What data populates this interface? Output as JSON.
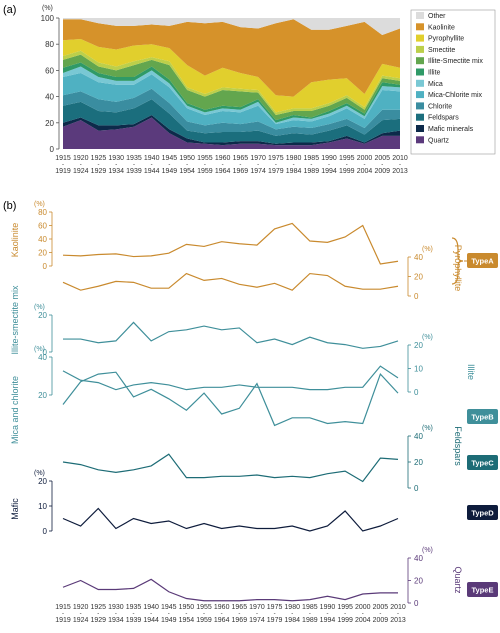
{
  "panel_labels": {
    "a": "(a)",
    "b": "(b)"
  },
  "colors": {
    "Other": "#dcdcdc",
    "Kaolinite": "#d6922a",
    "Pyrophyllite": "#e1cf2d",
    "Smectite": "#bccf4a",
    "Illite-Smectite mix": "#63a64e",
    "Illite": "#2f9a67",
    "Mica": "#79c8d4",
    "Mica-Chlorite mix": "#4fb1c2",
    "Chlorite": "#3a8da0",
    "Feldspars": "#1b6e7d",
    "Mafic minerals": "#0d2a4a",
    "Quartz": "#5b3a7c",
    "TypeA": "#c98a2e",
    "TypeB": "#3f8f9a",
    "TypeC": "#1d6c76",
    "TypeD": "#0e1c3c",
    "TypeE": "#5a3a78"
  },
  "x_ticks_top": [
    "1915",
    "1920",
    "1925",
    "1930",
    "1935",
    "1940",
    "1945",
    "1950",
    "1955",
    "1960",
    "1965",
    "1970",
    "1975",
    "1980",
    "1985",
    "1990",
    "1995",
    "2000",
    "2005",
    "2010"
  ],
  "x_ticks_bottom": [
    "1919",
    "1924",
    "1929",
    "1934",
    "1939",
    "1944",
    "1949",
    "1954",
    "1959",
    "1964",
    "1969",
    "1974",
    "1979",
    "1984",
    "1989",
    "1994",
    "1999",
    "2004",
    "2009",
    "2013"
  ],
  "chart_data": [
    {
      "type": "area",
      "stacked": true,
      "ylabel": "(%)",
      "ylim": [
        0,
        100
      ],
      "yticks": [
        0,
        20,
        40,
        60,
        80,
        100
      ],
      "legend_position": "right",
      "series": [
        {
          "name": "Quartz",
          "values": [
            17,
            22,
            14,
            15,
            17,
            24,
            12,
            5,
            4,
            3,
            4,
            4,
            3,
            3,
            3,
            5,
            8,
            4,
            10,
            10
          ]
        },
        {
          "name": "Mafic minerals",
          "values": [
            3,
            2,
            4,
            3,
            2,
            2,
            3,
            3,
            1,
            2,
            2,
            2,
            1,
            2,
            2,
            1,
            2,
            1,
            2,
            4
          ]
        },
        {
          "name": "Feldspars",
          "values": [
            13,
            12,
            11,
            10,
            12,
            12,
            12,
            6,
            7,
            8,
            7,
            8,
            6,
            7,
            6,
            8,
            8,
            6,
            10,
            9
          ]
        },
        {
          "name": "Chlorite",
          "values": [
            8,
            8,
            9,
            8,
            8,
            8,
            8,
            7,
            6,
            7,
            6,
            7,
            5,
            5,
            5,
            5,
            5,
            5,
            8,
            7
          ]
        },
        {
          "name": "Mica-Chlorite mix",
          "values": [
            14,
            14,
            13,
            13,
            10,
            11,
            12,
            10,
            8,
            9,
            9,
            12,
            4,
            5,
            5,
            6,
            8,
            7,
            15,
            14
          ]
        },
        {
          "name": "Mica",
          "values": [
            3,
            5,
            4,
            3,
            3,
            3,
            3,
            2,
            2,
            2,
            2,
            3,
            1,
            2,
            2,
            2,
            2,
            2,
            3,
            3
          ]
        },
        {
          "name": "Illite",
          "values": [
            4,
            3,
            3,
            3,
            3,
            3,
            3,
            2,
            2,
            2,
            2,
            2,
            2,
            2,
            1,
            2,
            2,
            2,
            3,
            2
          ]
        },
        {
          "name": "Illite-Smectite mix",
          "values": [
            6,
            6,
            5,
            5,
            9,
            5,
            11,
            10,
            10,
            12,
            12,
            5,
            4,
            3,
            5,
            4,
            4,
            3,
            3,
            3
          ]
        },
        {
          "name": "Smectite",
          "values": [
            3,
            3,
            3,
            3,
            3,
            2,
            3,
            2,
            2,
            2,
            2,
            2,
            2,
            2,
            2,
            2,
            2,
            2,
            2,
            2
          ]
        },
        {
          "name": "Pyrophyllite",
          "values": [
            12,
            9,
            12,
            13,
            12,
            10,
            10,
            17,
            14,
            15,
            12,
            10,
            13,
            9,
            20,
            18,
            13,
            10,
            9,
            8
          ]
        },
        {
          "name": "Kaolinite",
          "values": [
            16,
            15,
            18,
            18,
            15,
            15,
            17,
            33,
            40,
            35,
            35,
            37,
            55,
            59,
            40,
            38,
            40,
            55,
            22,
            30
          ]
        },
        {
          "name": "Other",
          "values": [
            1,
            3,
            4,
            6,
            6,
            5,
            6,
            3,
            4,
            3,
            7,
            8,
            4,
            1,
            9,
            9,
            6,
            3,
            13,
            8
          ]
        }
      ]
    },
    {
      "type": "line",
      "panels": [
        {
          "name": "Kaolinite",
          "group": "TypeA",
          "ylim": [
            0,
            80
          ],
          "yticks": [
            0,
            20,
            40,
            60,
            80
          ],
          "axis_side": "left",
          "values": [
            16,
            15,
            17,
            18,
            14,
            15,
            19,
            32,
            29,
            36,
            33,
            31,
            55,
            63,
            37,
            35,
            43,
            60,
            3,
            7
          ]
        },
        {
          "name": "Pyrophyllite",
          "group": "TypeA",
          "ylim": [
            0,
            40
          ],
          "yticks": [
            0,
            20,
            40
          ],
          "axis_side": "right",
          "values": [
            14,
            6,
            10,
            15,
            14,
            8,
            8,
            23,
            16,
            18,
            12,
            9,
            13,
            6,
            23,
            21,
            10,
            7,
            7,
            10
          ]
        },
        {
          "name": "Illite-smectite mix",
          "group": "TypeB",
          "ylim": [
            0,
            20
          ],
          "yticks": [
            0,
            20
          ],
          "axis_side": "left",
          "values": [
            7,
            7,
            5,
            6,
            16,
            6,
            11,
            12,
            14,
            12,
            13,
            5,
            7,
            4,
            8,
            5,
            4,
            2,
            3,
            6
          ]
        },
        {
          "name": "Illite",
          "group": "TypeB",
          "ylim": [
            0,
            20
          ],
          "yticks": [
            0,
            10,
            20
          ],
          "axis_side": "right",
          "values": [
            9,
            5,
            4,
            1,
            3,
            4,
            3,
            1,
            2,
            2,
            3,
            2,
            2,
            2,
            1,
            1,
            2,
            2,
            11,
            6
          ]
        },
        {
          "name": "Mica and chlorite",
          "group": "TypeB",
          "ylim": [
            0,
            40
          ],
          "yticks": [
            20,
            40
          ],
          "axis_side": "left",
          "values": [
            15,
            27,
            31,
            32,
            19,
            23,
            18,
            12,
            21,
            10,
            13,
            26,
            4,
            8,
            8,
            5,
            6,
            5,
            31,
            21
          ]
        },
        {
          "name": "Feldspars",
          "group": "TypeC",
          "ylim": [
            0,
            40
          ],
          "yticks": [
            0,
            20,
            40
          ],
          "axis_side": "right",
          "values": [
            20,
            18,
            14,
            12,
            14,
            17,
            26,
            8,
            8,
            9,
            9,
            10,
            8,
            9,
            8,
            11,
            13,
            5,
            23,
            22
          ]
        },
        {
          "name": "Mafic",
          "group": "TypeD",
          "ylim": [
            0,
            20
          ],
          "yticks": [
            0,
            10,
            20
          ],
          "axis_side": "left",
          "values": [
            5,
            2,
            9,
            1,
            5,
            3,
            4,
            1,
            3,
            1,
            2,
            1,
            1,
            2,
            0,
            2,
            8,
            0,
            2,
            5
          ]
        },
        {
          "name": "Quartz",
          "group": "TypeE",
          "ylim": [
            0,
            40
          ],
          "yticks": [
            0,
            20,
            40
          ],
          "axis_side": "right",
          "values": [
            14,
            20,
            12,
            12,
            13,
            21,
            10,
            4,
            2,
            2,
            2,
            3,
            3,
            2,
            3,
            6,
            3,
            8,
            9,
            9
          ]
        }
      ],
      "units": "(%)",
      "type_badges": [
        "TypeA",
        "TypeB",
        "TypeC",
        "TypeD",
        "TypeE"
      ]
    }
  ]
}
